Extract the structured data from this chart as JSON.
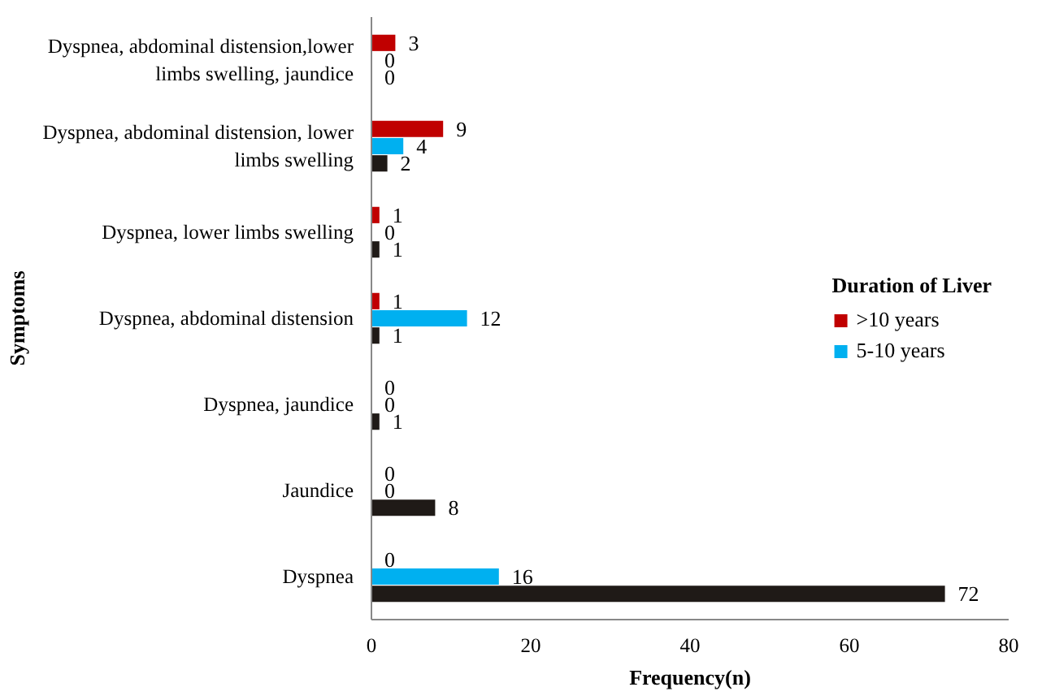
{
  "chart_data": {
    "type": "bar",
    "orientation": "horizontal",
    "xlabel": "Frequency(n)",
    "ylabel": "Symptoms",
    "legend_title": "Duration of Liver",
    "categories": [
      "Dyspnea, abdominal distension,lower limbs swelling, jaundice",
      "Dyspnea, abdominal distension, lower limbs swelling",
      "Dyspnea, lower limbs swelling",
      "Dyspnea, abdominal distension",
      "Dyspnea, jaundice",
      "Jaundice",
      "Dyspnea"
    ],
    "series": [
      {
        "name": ">10 years",
        "color": "#c00000",
        "values": [
          3,
          9,
          1,
          1,
          0,
          0,
          0
        ]
      },
      {
        "name": "5-10 years",
        "color": "#00b0f0",
        "values": [
          0,
          4,
          0,
          12,
          0,
          0,
          16
        ]
      },
      {
        "color": "#1f1a17",
        "values": [
          0,
          2,
          1,
          1,
          1,
          8,
          72
        ]
      }
    ],
    "xlim": [
      0,
      80
    ],
    "xticks": [
      0,
      20,
      40,
      60,
      80
    ],
    "data_labels": true,
    "grid": false,
    "legend": "right"
  }
}
